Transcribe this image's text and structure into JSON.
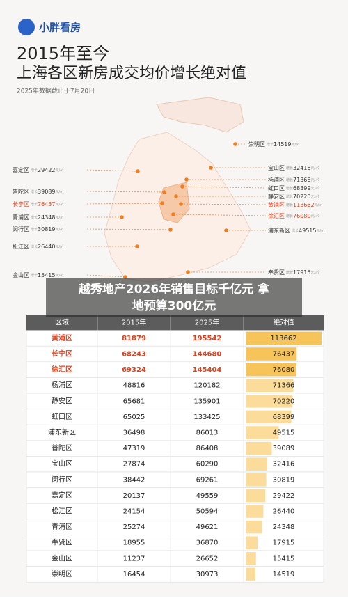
{
  "header": {
    "brand": "小胖看房",
    "title_lines": [
      "2015年至今",
      "上海各区新房成交均价增长绝对值"
    ],
    "note": "2025年数据截止于7月20日"
  },
  "map_labels": [
    {
      "district": "崇明区",
      "prefix": "增长",
      "value": 14519,
      "unit": "元/㎡"
    },
    {
      "district": "宝山区",
      "prefix": "增长",
      "value": 32416,
      "unit": "元/㎡"
    },
    {
      "district": "杨浦区",
      "prefix": "增长",
      "value": 71366,
      "unit": "元/㎡"
    },
    {
      "district": "虹口区",
      "prefix": "增长",
      "value": 68399,
      "unit": "元/㎡"
    },
    {
      "district": "静安区",
      "prefix": "增长",
      "value": 70220,
      "unit": "元/㎡"
    },
    {
      "district": "黄浦区",
      "prefix": "增长",
      "value": 113662,
      "unit": "元/㎡"
    },
    {
      "district": "徐汇区",
      "prefix": "增长",
      "value": 76080,
      "unit": "元/㎡"
    },
    {
      "district": "浦东新区",
      "prefix": "增长",
      "value": 49515,
      "unit": "元/㎡"
    },
    {
      "district": "奉贤区",
      "prefix": "增长",
      "value": 17915,
      "unit": "元/㎡"
    },
    {
      "district": "嘉定区",
      "prefix": "增长",
      "value": 29422,
      "unit": "元/㎡"
    },
    {
      "district": "普陀区",
      "prefix": "增长",
      "value": 39089,
      "unit": "元/㎡"
    },
    {
      "district": "长宁区",
      "prefix": "增长",
      "value": 76437,
      "unit": "元/㎡"
    },
    {
      "district": "青浦区",
      "prefix": "增长",
      "value": 24348,
      "unit": "元/㎡"
    },
    {
      "district": "闵行区",
      "prefix": "增长",
      "value": 30819,
      "unit": "元/㎡"
    },
    {
      "district": "松江区",
      "prefix": "增长",
      "value": 26440,
      "unit": "元/㎡"
    },
    {
      "district": "金山区",
      "prefix": "增长",
      "value": 15415,
      "unit": "元/㎡"
    }
  ],
  "banner": {
    "lines": [
      "越秀地产2026年销售目标千亿元 拿",
      "地预算300亿元"
    ]
  },
  "table": {
    "columns": [
      "区域",
      "2015年",
      "2025年",
      "绝对值"
    ],
    "rows": [
      [
        "黄浦区",
        81879,
        195542,
        113662
      ],
      [
        "长宁区",
        68243,
        144680,
        76437
      ],
      [
        "徐汇区",
        69324,
        145404,
        76080
      ],
      [
        "杨浦区",
        48816,
        120182,
        71366
      ],
      [
        "静安区",
        65681,
        135901,
        70220
      ],
      [
        "虹口区",
        65025,
        133425,
        68399
      ],
      [
        "浦东新区",
        36498,
        86013,
        49515
      ],
      [
        "普陀区",
        47319,
        86408,
        39089
      ],
      [
        "宝山区",
        27874,
        60290,
        32416
      ],
      [
        "闵行区",
        38442,
        69261,
        30819
      ],
      [
        "嘉定区",
        20137,
        49559,
        29422
      ],
      [
        "松江区",
        24154,
        50594,
        26440
      ],
      [
        "青浦区",
        25274,
        49621,
        24348
      ],
      [
        "奉贤区",
        18955,
        36870,
        17915
      ],
      [
        "金山区",
        11237,
        26652,
        15415
      ],
      [
        "崇明区",
        16454,
        30973,
        14519
      ]
    ]
  }
}
